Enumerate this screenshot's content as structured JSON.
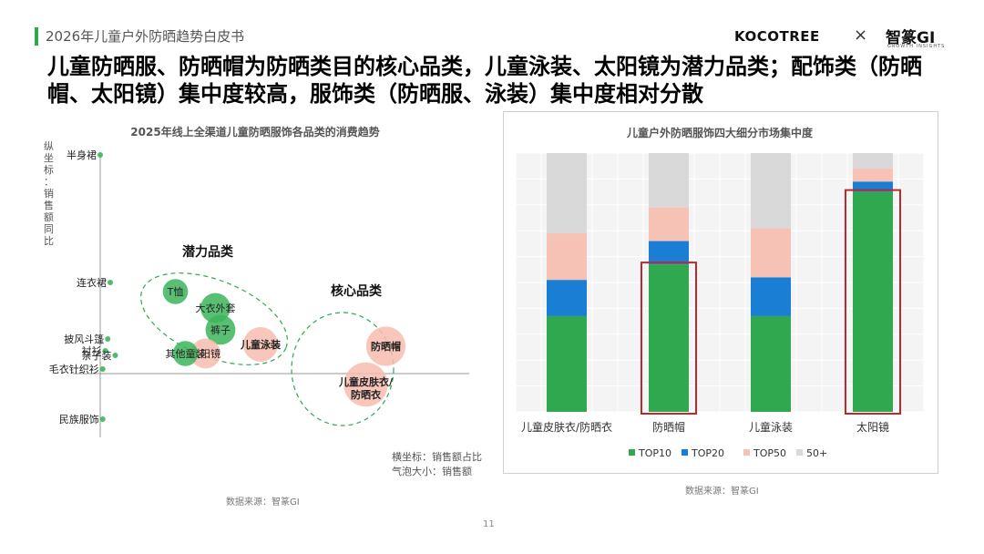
{
  "header": {
    "report_tag": "2026年儿童户外防晒趋势白皮书",
    "logo_koco": "KOCOTREE",
    "logo_times": "×",
    "logo_zh": "智篆GI",
    "logo_sub": "GROWTH INSIGHTS",
    "headline": "儿童防晒服、防晒帽为防晒类目的核心品类，儿童泳装、太阳镜为潜力品类；配饰类（防晒帽、太阳镜）集中度较高，服饰类（防晒服、泳装）集中度相对分散"
  },
  "colors": {
    "accent_green": "#2fa84f",
    "bubble_green": "#3cb55b",
    "bubble_pink": "#f7bcae",
    "top10": "#2fa84f",
    "top20": "#1a7fd4",
    "top50": "#f7c2b6",
    "rest": "#d9d9d9",
    "highlight": "#c0282d"
  },
  "chart_data": [
    {
      "type": "scatter",
      "title": "2025年线上全渠道儿童防晒服饰各品类的消费趋势",
      "ylabel": "纵坐标：销售额同比",
      "annotation_lines": [
        "横坐标：销售额占比",
        "气泡大小：销售额"
      ],
      "group_labels": [
        "潜力品类",
        "核心品类"
      ],
      "points": [
        {
          "name": "半身裙",
          "x": 0.0,
          "y": 2.4,
          "size": 1,
          "color": "green"
        },
        {
          "name": "连衣裙",
          "x": 0.2,
          "y": 1.0,
          "size": 1,
          "color": "green"
        },
        {
          "name": "T恤",
          "x": 1.5,
          "y": 0.9,
          "size": 3,
          "color": "green"
        },
        {
          "name": "大衣外套",
          "x": 2.3,
          "y": 0.72,
          "size": 4,
          "color": "green"
        },
        {
          "name": "裤子",
          "x": 2.4,
          "y": 0.48,
          "size": 4,
          "color": "green"
        },
        {
          "name": "儿童泳装",
          "x": 3.2,
          "y": 0.32,
          "size": 5,
          "color": "pink"
        },
        {
          "name": "太阳镜",
          "x": 2.1,
          "y": 0.22,
          "size": 4,
          "color": "pink"
        },
        {
          "name": "其他童装",
          "x": 1.7,
          "y": 0.22,
          "size": 3,
          "color": "green"
        },
        {
          "name": "披风斗篷",
          "x": 0.15,
          "y": 0.38,
          "size": 1,
          "color": "green"
        },
        {
          "name": "衬衫",
          "x": 0.1,
          "y": 0.25,
          "size": 1,
          "color": "green"
        },
        {
          "name": "亲子装",
          "x": 0.3,
          "y": 0.2,
          "size": 1,
          "color": "green"
        },
        {
          "name": "毛衣针织衫",
          "x": 0.05,
          "y": 0.05,
          "size": 1,
          "color": "green"
        },
        {
          "name": "民族服饰",
          "x": 0.05,
          "y": -0.5,
          "size": 1,
          "color": "green"
        },
        {
          "name": "防晒帽",
          "x": 5.7,
          "y": 0.3,
          "size": 6,
          "color": "pink"
        },
        {
          "name": "儿童皮肤衣/防晒衣",
          "x": 5.3,
          "y": -0.12,
          "size": 7,
          "color": "pink"
        }
      ]
    },
    {
      "type": "bar",
      "stacked": true,
      "title": "儿童户外防晒服饰四大细分市场集中度",
      "categories": [
        "儿童皮肤衣/防晒衣",
        "防晒帽",
        "儿童泳装",
        "太阳镜"
      ],
      "ylim": [
        0,
        100
      ],
      "series": [
        {
          "name": "TOP10",
          "values": [
            37,
            57,
            37,
            85
          ]
        },
        {
          "name": "TOP20",
          "values": [
            14,
            9,
            15,
            4
          ]
        },
        {
          "name": "TOP50",
          "values": [
            18,
            13,
            19,
            5
          ]
        },
        {
          "name": "50+",
          "values": [
            31,
            21,
            29,
            6
          ]
        }
      ],
      "highlighted_categories": [
        "防晒帽",
        "太阳镜"
      ],
      "legend_position": "bottom"
    }
  ],
  "sources": {
    "left": "数据来源：智篆GI",
    "right": "数据来源：智篆GI"
  },
  "page_number": "11"
}
